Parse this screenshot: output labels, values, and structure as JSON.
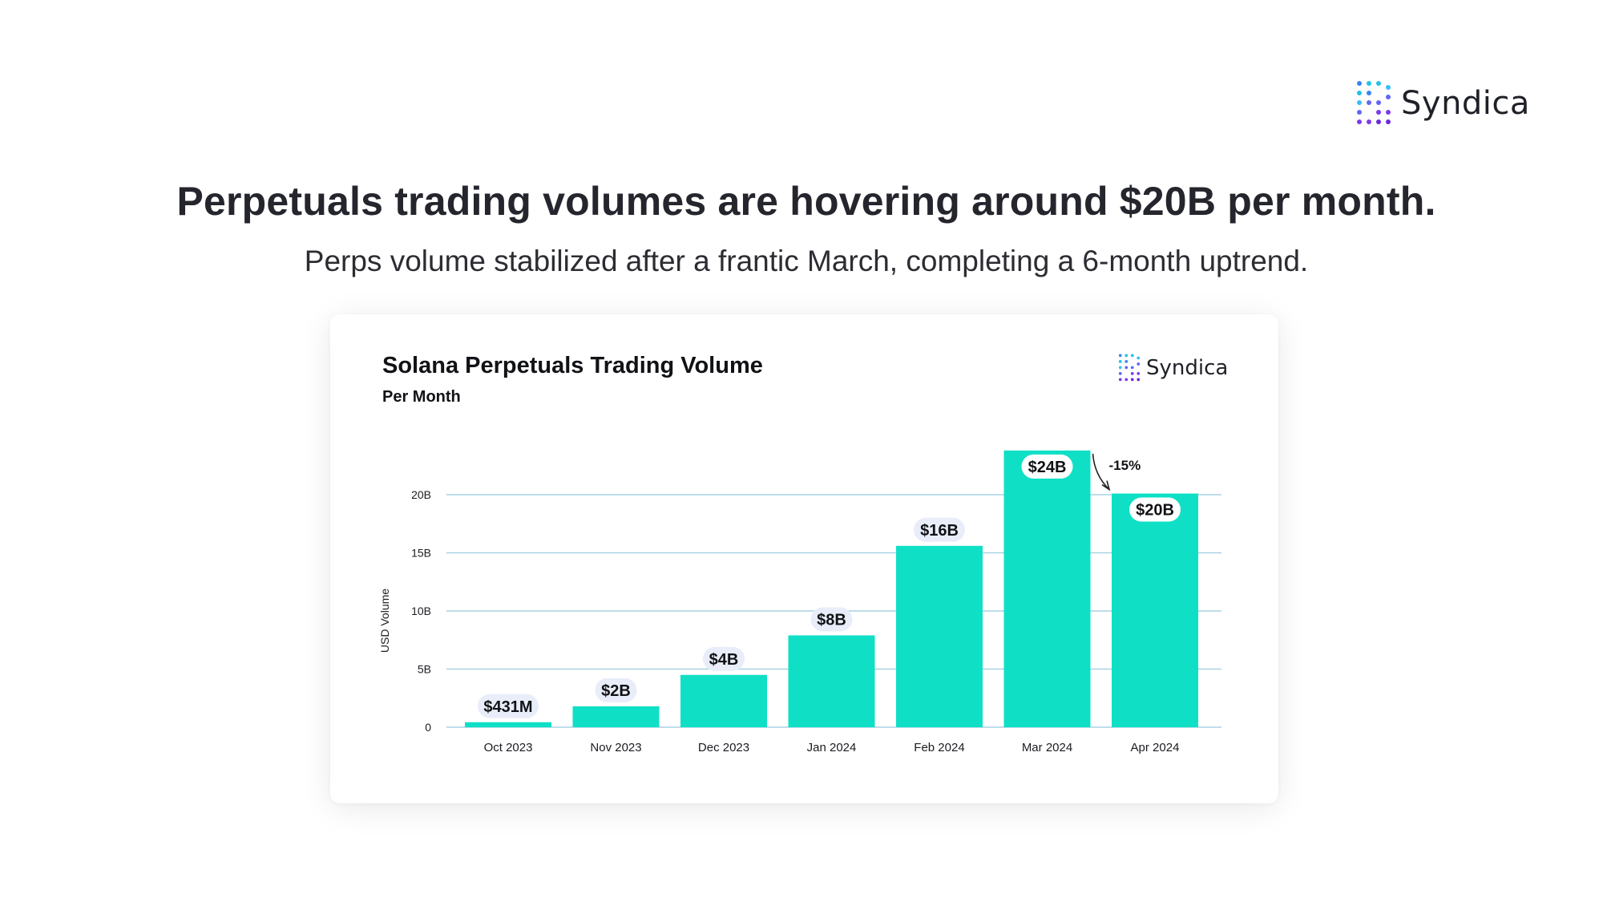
{
  "brand": {
    "name": "Syndica"
  },
  "headline": "Perpetuals trading volumes are hovering around $20B per month.",
  "subheadline": "Perps volume stabilized after a frantic March, completing a 6-month uptrend.",
  "chart_data": {
    "type": "bar",
    "title": "Solana Perpetuals Trading Volume",
    "subtitle": "Per Month",
    "brand": "Syndica",
    "xlabel": "",
    "ylabel": "USD Volume",
    "categories": [
      "Oct 2023",
      "Nov 2023",
      "Dec 2023",
      "Jan 2024",
      "Feb 2024",
      "Mar 2024",
      "Apr 2024"
    ],
    "values": [
      0.431,
      1.8,
      4.5,
      7.9,
      15.6,
      23.8,
      20.1
    ],
    "value_labels": [
      "$431M",
      "$2B",
      "$4B",
      "$8B",
      "$16B",
      "$24B",
      "$20B"
    ],
    "units": "billions USD",
    "ylim": [
      0,
      20
    ],
    "yticks": [
      0,
      5,
      10,
      15,
      20
    ],
    "ytick_labels": [
      "0",
      "5B",
      "10B",
      "15B",
      "20B"
    ],
    "grid": true,
    "annotation": {
      "text": "-15%",
      "from": "Mar 2024",
      "to": "Apr 2024"
    },
    "colors": {
      "bar": "#0fe0c5",
      "grid": "#a9d2e3",
      "label_pill": "#e8edf9"
    }
  }
}
